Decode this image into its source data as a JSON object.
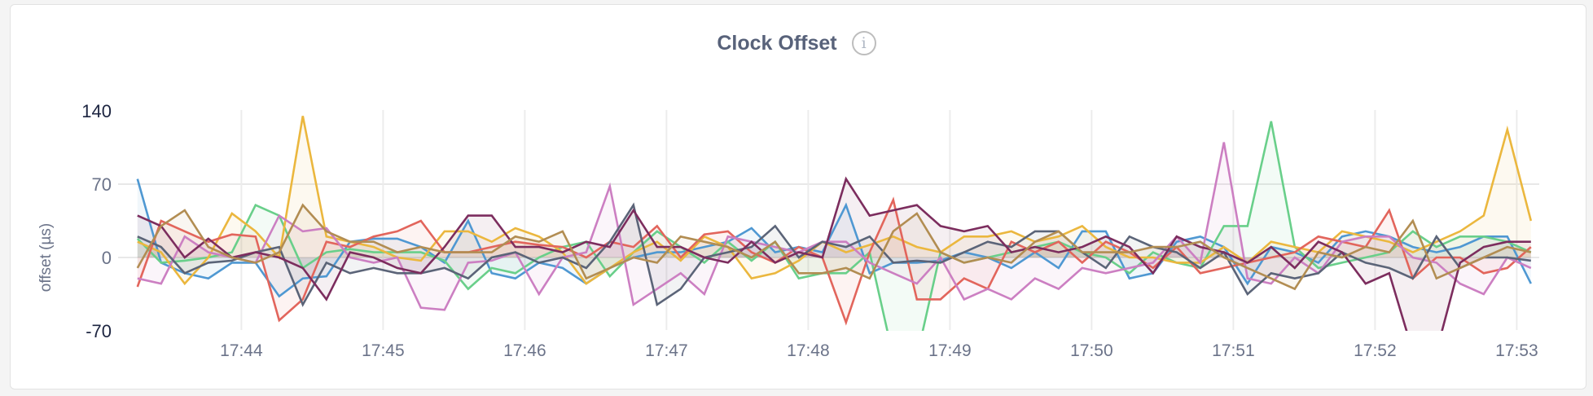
{
  "panel": {
    "title": "Clock Offset",
    "info_icon": "info-circle-icon"
  },
  "chart_data": {
    "type": "area",
    "title": "Clock Offset",
    "xlabel": "",
    "ylabel": "offset (µs)",
    "ylim": [
      -70,
      140
    ],
    "yticks": [
      "140",
      "70",
      "0",
      "-70"
    ],
    "xticks": [
      "17:44",
      "17:45",
      "17:46",
      "17:47",
      "17:48",
      "17:49",
      "17:50",
      "17:51",
      "17:52",
      "17:53"
    ],
    "grid": true,
    "legend": "none",
    "x": [
      "17:43:16",
      "17:43:26",
      "17:43:36",
      "17:43:46",
      "17:43:56",
      "17:44:06",
      "17:44:16",
      "17:44:26",
      "17:44:36",
      "17:44:46",
      "17:44:56",
      "17:45:06",
      "17:45:16",
      "17:45:26",
      "17:45:36",
      "17:45:46",
      "17:45:56",
      "17:46:06",
      "17:46:16",
      "17:46:26",
      "17:46:36",
      "17:46:46",
      "17:46:56",
      "17:47:06",
      "17:47:16",
      "17:47:26",
      "17:47:36",
      "17:47:46",
      "17:47:56",
      "17:48:06",
      "17:48:16",
      "17:48:26",
      "17:48:36",
      "17:48:46",
      "17:48:56",
      "17:49:06",
      "17:49:16",
      "17:49:26",
      "17:49:36",
      "17:49:46",
      "17:49:56",
      "17:50:06",
      "17:50:16",
      "17:50:26",
      "17:50:36",
      "17:50:46",
      "17:50:56",
      "17:51:06",
      "17:51:16",
      "17:51:26",
      "17:51:36",
      "17:51:46",
      "17:51:56",
      "17:52:06",
      "17:52:16",
      "17:52:26",
      "17:52:36",
      "17:52:46",
      "17:52:56",
      "17:53:06"
    ],
    "series": [
      {
        "color": "#4f98d2",
        "values": [
          75,
          -5,
          -15,
          -20,
          -5,
          -5,
          -37,
          -20,
          -18,
          15,
          18,
          18,
          10,
          -5,
          35,
          -15,
          -20,
          -5,
          -10,
          -25,
          -10,
          0,
          5,
          5,
          10,
          15,
          28,
          5,
          10,
          5,
          50,
          -15,
          -5,
          -5,
          -3,
          5,
          0,
          -10,
          5,
          -10,
          25,
          25,
          -20,
          -15,
          15,
          20,
          10,
          -25,
          10,
          5,
          -5,
          20,
          25,
          20,
          10,
          5,
          10,
          20,
          20,
          -25
        ]
      },
      {
        "color": "#69cf8a",
        "values": [
          18,
          -5,
          -3,
          0,
          5,
          50,
          40,
          -10,
          5,
          8,
          5,
          5,
          5,
          -3,
          -30,
          -10,
          -15,
          0,
          10,
          15,
          -18,
          5,
          25,
          10,
          -5,
          15,
          -3,
          15,
          -20,
          -15,
          -15,
          5,
          -95,
          -95,
          5,
          -5,
          0,
          5,
          10,
          15,
          5,
          0,
          -15,
          5,
          -5,
          -10,
          30,
          30,
          130,
          10,
          -10,
          -5,
          0,
          5,
          25,
          10,
          20,
          20,
          15,
          5
        ]
      },
      {
        "color": "#ebb73e",
        "values": [
          15,
          5,
          -25,
          0,
          42,
          25,
          0,
          135,
          20,
          15,
          10,
          0,
          -3,
          25,
          25,
          15,
          28,
          20,
          5,
          -25,
          -10,
          5,
          15,
          -3,
          20,
          10,
          -20,
          -15,
          -3,
          15,
          5,
          12,
          20,
          10,
          5,
          20,
          20,
          25,
          15,
          20,
          30,
          10,
          0,
          0,
          -5,
          -5,
          10,
          -5,
          15,
          10,
          5,
          25,
          20,
          15,
          5,
          15,
          25,
          40,
          122,
          35
        ]
      },
      {
        "color": "#e2655c",
        "values": [
          -28,
          35,
          25,
          15,
          22,
          20,
          -60,
          -40,
          15,
          10,
          20,
          25,
          35,
          5,
          5,
          10,
          15,
          12,
          10,
          0,
          15,
          10,
          30,
          0,
          22,
          25,
          5,
          -5,
          10,
          0,
          -62,
          5,
          55,
          -40,
          -40,
          -20,
          -30,
          15,
          5,
          15,
          -5,
          15,
          5,
          -10,
          10,
          -15,
          -10,
          -5,
          0,
          5,
          20,
          15,
          10,
          45,
          -20,
          0,
          0,
          -15,
          -10,
          10
        ]
      },
      {
        "color": "#cc7fc2",
        "values": [
          -20,
          -25,
          20,
          5,
          0,
          -5,
          40,
          25,
          28,
          0,
          -5,
          0,
          -48,
          -50,
          -5,
          -3,
          5,
          -35,
          0,
          5,
          68,
          -45,
          -30,
          -15,
          -35,
          20,
          15,
          10,
          5,
          15,
          15,
          -5,
          -15,
          -25,
          0,
          -40,
          -30,
          -40,
          -20,
          -30,
          -10,
          -15,
          -10,
          -5,
          20,
          -5,
          110,
          -20,
          -25,
          0,
          -15,
          15,
          20,
          20,
          0,
          -5,
          -25,
          -35,
          0,
          -10
        ]
      },
      {
        "color": "#5b6478",
        "values": [
          20,
          10,
          -15,
          -5,
          -3,
          5,
          10,
          -45,
          -5,
          -15,
          -10,
          -15,
          -15,
          -10,
          -20,
          0,
          5,
          -5,
          0,
          -10,
          15,
          50,
          -45,
          -30,
          0,
          5,
          10,
          30,
          0,
          15,
          10,
          20,
          -5,
          -3,
          -5,
          5,
          15,
          10,
          25,
          25,
          5,
          -10,
          20,
          10,
          5,
          -10,
          5,
          -35,
          -15,
          -20,
          -15,
          5,
          -5,
          -10,
          -20,
          20,
          -10,
          0,
          0,
          -3
        ]
      },
      {
        "color": "#7c2d5e",
        "values": [
          40,
          30,
          0,
          18,
          0,
          5,
          0,
          -10,
          -40,
          5,
          0,
          -10,
          -15,
          10,
          40,
          40,
          10,
          10,
          5,
          15,
          10,
          45,
          10,
          10,
          0,
          -5,
          15,
          -5,
          5,
          0,
          75,
          40,
          45,
          50,
          30,
          25,
          30,
          5,
          10,
          5,
          10,
          20,
          10,
          -15,
          20,
          10,
          5,
          -5,
          10,
          -10,
          15,
          5,
          -25,
          -15,
          -90,
          -90,
          -5,
          10,
          15,
          15
        ]
      },
      {
        "color": "#b28d52",
        "values": [
          -10,
          30,
          45,
          10,
          0,
          -5,
          5,
          50,
          25,
          15,
          15,
          5,
          10,
          5,
          5,
          5,
          20,
          15,
          25,
          -20,
          -10,
          0,
          -5,
          20,
          15,
          10,
          0,
          15,
          -15,
          -15,
          -10,
          -20,
          25,
          42,
          5,
          -5,
          0,
          -5,
          15,
          25,
          5,
          5,
          5,
          10,
          10,
          15,
          0,
          -10,
          -20,
          -30,
          5,
          0,
          10,
          5,
          35,
          -20,
          -10,
          0,
          10,
          5
        ]
      }
    ]
  }
}
